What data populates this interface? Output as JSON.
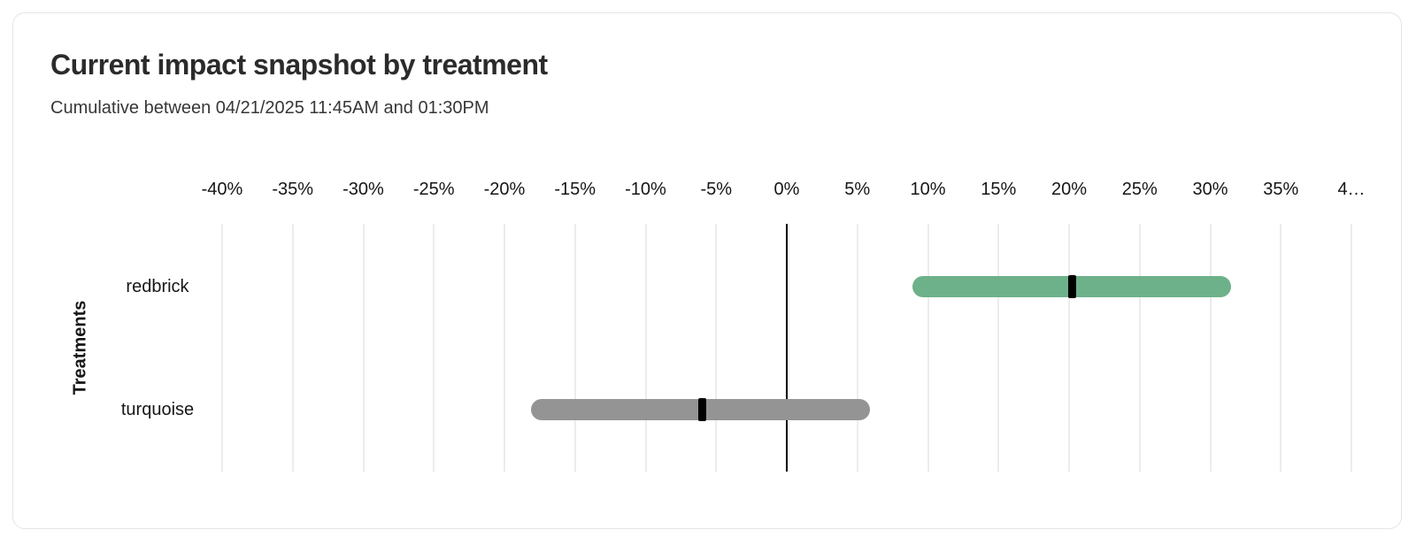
{
  "header": {
    "title": "Current impact snapshot by treatment",
    "subtitle": "Cumulative between 04/21/2025 11:45AM and 01:30PM"
  },
  "chart_data": {
    "type": "bar",
    "subtype": "horizontal_interval",
    "title": "Current impact snapshot by treatment",
    "subtitle": "Cumulative between 04/21/2025 11:45AM and 01:30PM",
    "ylabel": "Treatments",
    "xlabel": "",
    "x_unit": "%",
    "xlim": [
      -40,
      40
    ],
    "grid": "vertical",
    "zero_line": true,
    "legend": "none",
    "x_ticks": [
      {
        "value": -40,
        "label": "-40%"
      },
      {
        "value": -35,
        "label": "-35%"
      },
      {
        "value": -30,
        "label": "-30%"
      },
      {
        "value": -25,
        "label": "-25%"
      },
      {
        "value": -20,
        "label": "-20%"
      },
      {
        "value": -15,
        "label": "-15%"
      },
      {
        "value": -10,
        "label": "-10%"
      },
      {
        "value": -5,
        "label": "-5%"
      },
      {
        "value": 0,
        "label": "0%"
      },
      {
        "value": 5,
        "label": "5%"
      },
      {
        "value": 10,
        "label": "10%"
      },
      {
        "value": 15,
        "label": "15%"
      },
      {
        "value": 20,
        "label": "20%"
      },
      {
        "value": 25,
        "label": "25%"
      },
      {
        "value": 30,
        "label": "30%"
      },
      {
        "value": 35,
        "label": "35%"
      },
      {
        "value": 40,
        "label": "4…"
      }
    ],
    "categories": [
      "redbrick",
      "turquoise"
    ],
    "rows": [
      {
        "label": "redbrick",
        "lower": 8.9,
        "point": 20.2,
        "upper": 31.5,
        "bar_color": "#6DB18A",
        "marker_color": "#000000"
      },
      {
        "label": "turquoise",
        "lower": -18.1,
        "point": -6,
        "upper": 5.9,
        "bar_color": "#949494",
        "marker_color": "#000000"
      }
    ]
  }
}
